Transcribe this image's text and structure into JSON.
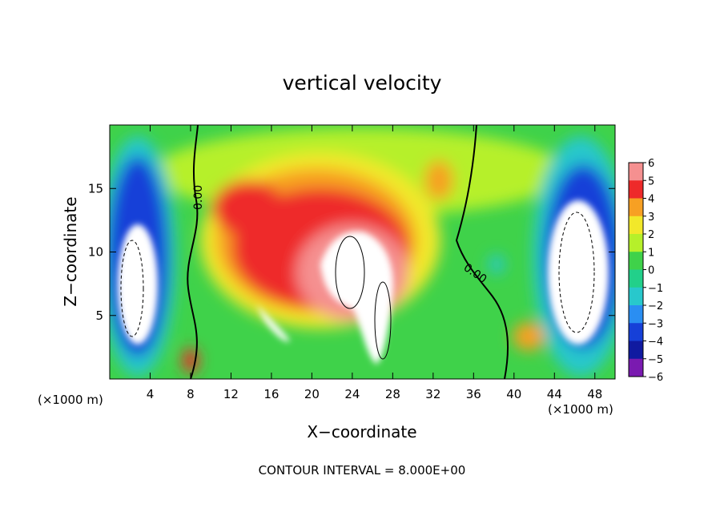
{
  "chart_data": {
    "type": "heatmap",
    "title": "vertical velocity",
    "xlabel": "X−coordinate",
    "ylabel": "Z−coordinate",
    "x_unit_left": "(×1000 m)",
    "x_unit_right": "(×1000 m)",
    "xlim": [
      0,
      50
    ],
    "ylim": [
      0,
      20
    ],
    "x_ticks": [
      4,
      8,
      12,
      16,
      20,
      24,
      28,
      32,
      36,
      40,
      44,
      48
    ],
    "y_ticks": [
      5,
      10,
      15
    ],
    "colorbar": {
      "vmin": -6,
      "vmax": 6,
      "labels": [
        "6",
        "5",
        "4",
        "3",
        "2",
        "1",
        "0",
        "−1",
        "−2",
        "−3",
        "−4",
        "−5",
        "−6"
      ]
    },
    "contour_labels": [
      "0.00",
      "0.00"
    ],
    "footnote": "CONTOUR INTERVAL = 8.000E+00",
    "features": [
      {
        "kind": "updraft",
        "x": 23,
        "z": 8,
        "value": 8
      },
      {
        "kind": "updraft",
        "x": 15,
        "z": 12,
        "value": 4
      },
      {
        "kind": "downdraft",
        "x": 4,
        "z": 7,
        "value": -8
      },
      {
        "kind": "downdraft",
        "x": 46,
        "z": 9,
        "value": -8
      }
    ]
  }
}
